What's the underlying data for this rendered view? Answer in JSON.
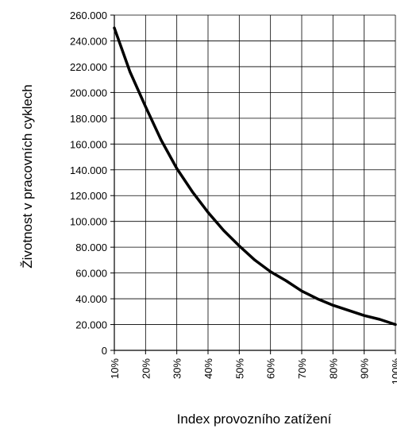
{
  "chart_data": {
    "type": "line",
    "xlabel": "Index provozního zatížení",
    "ylabel": "Životnost v pracovních cyklech",
    "x": [
      10,
      15,
      20,
      25,
      30,
      35,
      40,
      45,
      50,
      55,
      60,
      65,
      70,
      75,
      80,
      85,
      90,
      95,
      100
    ],
    "xtick_labels": [
      "10%",
      "20%",
      "30%",
      "40%",
      "50%",
      "60%",
      "70%",
      "80%",
      "90%",
      "100%"
    ],
    "ytick_labels": [
      "0",
      "20.000",
      "40.000",
      "60.000",
      "80.000",
      "100.000",
      "120.000",
      "140.000",
      "160.000",
      "180.000",
      "200.000",
      "220.000",
      "240.000",
      "260.000"
    ],
    "ylim": [
      0,
      260000
    ],
    "xlim": [
      10,
      100
    ],
    "grid": true,
    "series": [
      {
        "values": [
          250000,
          216000,
          189000,
          163000,
          141000,
          123000,
          107000,
          93000,
          81000,
          70000,
          61000,
          54000,
          46000,
          40000,
          35000,
          31000,
          27000,
          24000,
          20000
        ],
        "color": "#000000"
      }
    ]
  }
}
